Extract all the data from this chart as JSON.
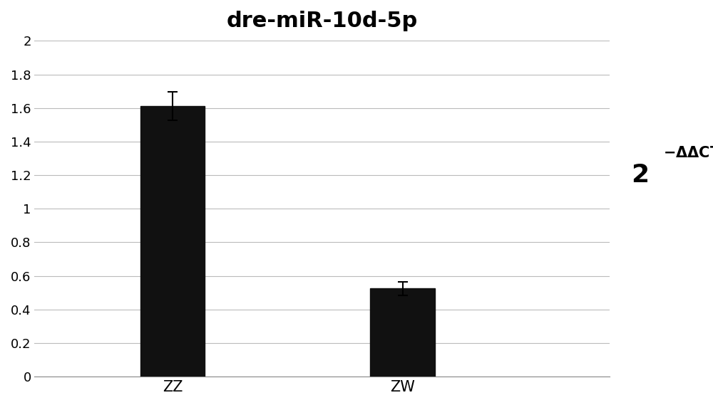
{
  "title": "dre-miR-10d-5p",
  "categories": [
    "ZZ",
    "ZW"
  ],
  "values": [
    1.61,
    0.525
  ],
  "errors": [
    0.085,
    0.04
  ],
  "bar_color": "#111111",
  "bar_width": 0.28,
  "x_positions": [
    1,
    2
  ],
  "xlim": [
    0.4,
    2.9
  ],
  "ylim": [
    0,
    2
  ],
  "yticks": [
    0,
    0.2,
    0.4,
    0.6,
    0.8,
    1.0,
    1.2,
    1.4,
    1.6,
    1.8,
    2.0
  ],
  "background_color": "#ffffff",
  "title_fontsize": 22,
  "tick_fontsize": 13,
  "ylabel_fontsize": 22
}
